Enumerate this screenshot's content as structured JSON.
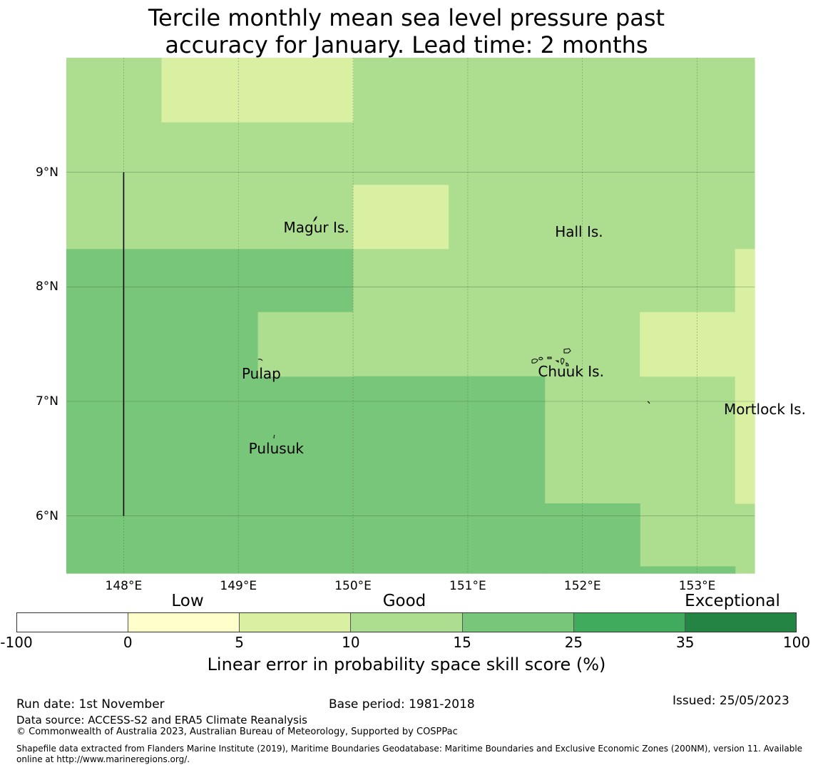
{
  "title": {
    "line1": "Tercile monthly mean sea level pressure past",
    "line2": "accuracy for January. Lead time: 2 months"
  },
  "map": {
    "lon_range": [
      147.5,
      153.5
    ],
    "lat_range": [
      5.5,
      10.0
    ],
    "lon_ticks": [
      148,
      149,
      150,
      151,
      152,
      153
    ],
    "lat_ticks": [
      6,
      7,
      8,
      9
    ],
    "lon_labels": [
      "148°E",
      "149°E",
      "150°E",
      "151°E",
      "152°E",
      "153°E"
    ],
    "lat_labels": [
      "6°N",
      "7°N",
      "8°N",
      "9°N"
    ],
    "boundary_line": {
      "lon": 148.0,
      "lat_from": 6.0,
      "lat_to": 9.0
    },
    "cells": [
      {
        "lon0": 147.5,
        "lon1": 153.5,
        "lat0": 8.33,
        "lat1": 10.0,
        "cat": 3
      },
      {
        "lon0": 148.33,
        "lon1": 150.0,
        "lat0": 9.44,
        "lat1": 10.0,
        "cat": 2
      },
      {
        "lon0": 150.0,
        "lon1": 150.83,
        "lat0": 8.33,
        "lat1": 8.89,
        "cat": 2
      },
      {
        "lon0": 147.5,
        "lon1": 150.0,
        "lat0": 5.5,
        "lat1": 8.33,
        "cat": 4
      },
      {
        "lon0": 150.0,
        "lon1": 153.5,
        "lat0": 5.5,
        "lat1": 8.33,
        "cat": 3
      },
      {
        "lon0": 149.17,
        "lon1": 150.0,
        "lat0": 7.22,
        "lat1": 7.78,
        "cat": 3
      },
      {
        "lon0": 150.0,
        "lon1": 151.67,
        "lat0": 5.5,
        "lat1": 7.22,
        "cat": 4
      },
      {
        "lon0": 151.67,
        "lon1": 152.5,
        "lat0": 5.5,
        "lat1": 6.11,
        "cat": 4
      },
      {
        "lon0": 152.5,
        "lon1": 153.33,
        "lat0": 5.5,
        "lat1": 5.56,
        "cat": 4
      },
      {
        "lon0": 152.5,
        "lon1": 153.33,
        "lat0": 7.22,
        "lat1": 7.78,
        "cat": 2
      },
      {
        "lon0": 153.33,
        "lon1": 153.5,
        "lat0": 6.11,
        "lat1": 8.33,
        "cat": 2
      }
    ],
    "places": [
      {
        "name": "Magur Is.",
        "lon": 149.68,
        "lat": 8.52
      },
      {
        "name": "Hall Is.",
        "lon": 151.97,
        "lat": 8.48
      },
      {
        "name": "Pulap",
        "lon": 149.2,
        "lat": 7.24
      },
      {
        "name": "Chuuk Is.",
        "lon": 151.9,
        "lat": 7.26
      },
      {
        "name": "Mortlock Is.",
        "lon": 153.59,
        "lat": 6.93
      },
      {
        "name": "Pulusuk",
        "lon": 149.33,
        "lat": 6.59
      }
    ]
  },
  "colorbar": {
    "colors": [
      "#ffffff",
      "#ffffcc",
      "#d9f0a3",
      "#addd8e",
      "#78c679",
      "#41ab5d",
      "#238443"
    ],
    "ticks": [
      "-100",
      "0",
      "5",
      "10",
      "15",
      "25",
      "35",
      "100"
    ],
    "categories": [
      "Low",
      "Good",
      "Exceptional"
    ],
    "label": "Linear error in probability space skill score (%)"
  },
  "footer": {
    "run_date": "Run date: 1st November",
    "base_period": "Base period: 1981-2018",
    "issued": "Issued: 25/05/2023",
    "data_source": "Data source: ACCESS-S2 and ERA5 Climate Reanalysis",
    "copyright": "© Commonwealth of Australia 2023, Australian Bureau of Meteorology, Supported by COSPPac",
    "shapefile_line1": "Shapefile data extracted from Flanders Marine Institute (2019), Maritime Boundaries Geodatabase: Maritime Boundaries and Exclusive Economic Zones (200NM), version 11. Available",
    "shapefile_line2": "online at http://www.marineregions.org/."
  }
}
